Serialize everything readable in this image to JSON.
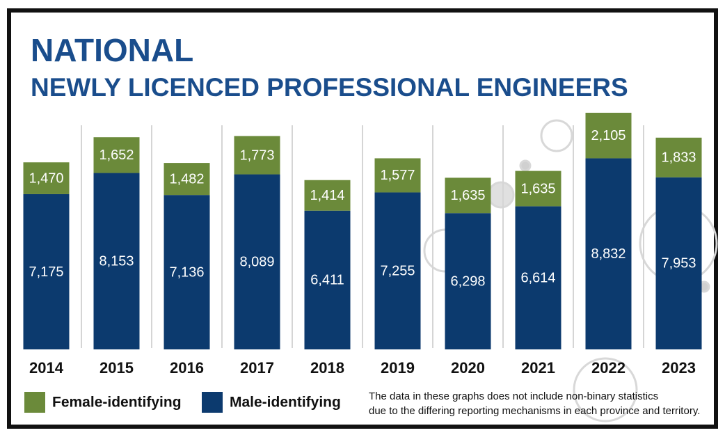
{
  "chart_data": {
    "type": "stacked_bar",
    "title": "NATIONAL",
    "subtitle": "NEWLY LICENCED PROFESSIONAL ENGINEERS",
    "categories": [
      "2014",
      "2015",
      "2016",
      "2017",
      "2018",
      "2019",
      "2020",
      "2021",
      "2022",
      "2023"
    ],
    "series": [
      {
        "name": "Male-identifying",
        "color": "#0c3a6e",
        "values": [
          7175,
          8153,
          7136,
          8089,
          6411,
          7255,
          6298,
          6614,
          8832,
          7953
        ],
        "value_labels": [
          "7,175",
          "8,153",
          "7,136",
          "8,089",
          "6,411",
          "7,255",
          "6,298",
          "6,614",
          "8,832",
          "7,953"
        ]
      },
      {
        "name": "Female-identifying",
        "color": "#6b8a3a",
        "values": [
          1470,
          1652,
          1482,
          1773,
          1414,
          1577,
          1635,
          1635,
          2105,
          1833
        ],
        "value_labels": [
          "1,470",
          "1,652",
          "1,482",
          "1,773",
          "1,414",
          "1,577",
          "1,635",
          "1,635",
          "2,105",
          "1,833"
        ]
      }
    ],
    "note": [
      "The data in these graphs does not include non-binary statistics",
      "due to the differing reporting mechanisms in each province and territory."
    ]
  }
}
